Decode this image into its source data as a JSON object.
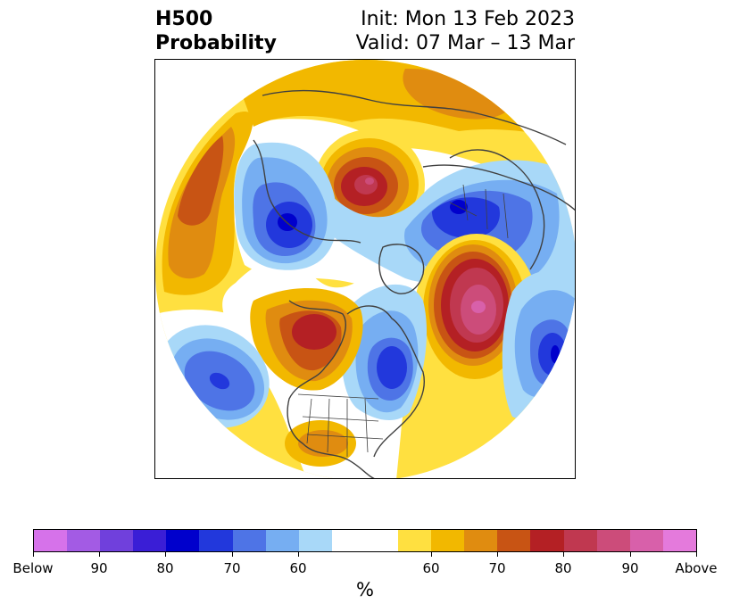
{
  "title": {
    "left_line1": "H500",
    "left_line2": "Probability",
    "right_line1": "Init: Mon 13 Feb 2023",
    "right_line2": "Valid: 07 Mar – 13 Mar"
  },
  "colorbar": {
    "colors": [
      "#d672ea",
      "#a35be4",
      "#7040dc",
      "#3a1ed6",
      "#0000cc",
      "#2238dc",
      "#4e74e6",
      "#76aef2",
      "#a8d8f8",
      "#ffffff",
      "#ffffff",
      "#ffe040",
      "#f2b800",
      "#e08c10",
      "#c85414",
      "#b42024",
      "#c03850",
      "#cc4c7a",
      "#d860aa",
      "#e47adc"
    ],
    "tick_labels": [
      "Below",
      "90",
      "80",
      "70",
      "60",
      "60",
      "70",
      "80",
      "90",
      "Above"
    ],
    "unit_label": "%"
  },
  "map": {
    "projection": "north polar stereographic",
    "below_colors": {
      "p60": "#a8d8f8",
      "p70": "#76aef2",
      "p80": "#4e74e6",
      "p90": "#2238dc",
      "p100": "#0000cc"
    },
    "above_colors": {
      "p60": "#ffe040",
      "p65": "#f2b800",
      "p70": "#e08c10",
      "p75": "#c85414",
      "p80": "#b42024",
      "p85": "#c03850",
      "p90": "#cc4c7a",
      "p95": "#d860aa"
    }
  }
}
